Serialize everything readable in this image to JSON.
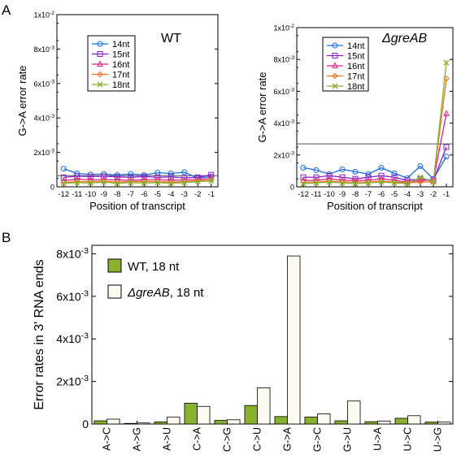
{
  "panel_labels": {
    "a": "A",
    "b": "B"
  },
  "chart_data": [
    {
      "type": "line",
      "panel": "A",
      "title": "WT",
      "xlabel": "Position of transcript",
      "ylabel": "G->A error rate",
      "categories": [
        "-12",
        "-11",
        "-10",
        "-9",
        "-8",
        "-7",
        "-6",
        "-5",
        "-4",
        "-3",
        "-2",
        "-1"
      ],
      "ylim": [
        0,
        0.01
      ],
      "ytick_labels": [
        "0",
        "2x10-3",
        "4x10-3",
        "6x10-3",
        "8x10-3",
        "1x10-2"
      ],
      "reference_line": 0.00065,
      "legend_position": "top-left",
      "series": [
        {
          "name": "14nt",
          "color": "#1a6ee0",
          "marker": "circle",
          "values": [
            0.00105,
            0.00078,
            0.00072,
            0.00075,
            0.00068,
            0.00075,
            0.00068,
            0.00082,
            0.00078,
            0.00085,
            0.0005,
            0.0006
          ]
        },
        {
          "name": "15nt",
          "color": "#8a1ec8",
          "marker": "square",
          "values": [
            0.00055,
            0.00062,
            0.0006,
            0.00062,
            0.00058,
            0.00055,
            0.0006,
            0.00055,
            0.00058,
            0.00052,
            0.00055,
            0.0007
          ]
        },
        {
          "name": "16nt",
          "color": "#e0208a",
          "marker": "triangle",
          "values": [
            0.00035,
            0.00045,
            0.0004,
            0.00042,
            0.0004,
            0.00038,
            0.0004,
            0.00042,
            0.00038,
            0.0004,
            0.00042,
            0.0005
          ]
        },
        {
          "name": "17nt",
          "color": "#f07020",
          "marker": "diamond",
          "values": [
            0.00025,
            0.0003,
            0.0003,
            0.00032,
            0.00028,
            0.0003,
            0.00032,
            0.0003,
            0.00028,
            0.0003,
            0.00035,
            0.0004
          ]
        },
        {
          "name": "18nt",
          "color": "#88b030",
          "marker": "x",
          "values": [
            0.0002,
            0.00025,
            0.00022,
            0.00028,
            0.0002,
            0.00025,
            0.00022,
            0.00025,
            0.0002,
            0.00025,
            0.0003,
            0.00035
          ]
        }
      ]
    },
    {
      "type": "line",
      "panel": "A",
      "title": "ΔgreAB",
      "xlabel": "Position of transcript",
      "ylabel": "G->A error rate",
      "categories": [
        "-12",
        "-11",
        "-10",
        "-9",
        "-8",
        "-7",
        "-6",
        "-5",
        "-4",
        "-3",
        "-2",
        "-1"
      ],
      "ylim": [
        0,
        0.01
      ],
      "ytick_labels": [
        "0",
        "2x10-3",
        "4x10-3",
        "6x10-3",
        "8x10-3",
        "1x10-2"
      ],
      "reference_line": 0.0027,
      "legend_position": "top-left",
      "series": [
        {
          "name": "14nt",
          "color": "#1a6ee0",
          "marker": "circle",
          "values": [
            0.0012,
            0.00105,
            0.0008,
            0.0011,
            0.00095,
            0.0008,
            0.0012,
            0.00085,
            0.00055,
            0.0013,
            0.0005,
            0.0019
          ]
        },
        {
          "name": "15nt",
          "color": "#8a1ec8",
          "marker": "square",
          "values": [
            0.0006,
            0.0006,
            0.0007,
            0.0006,
            0.0005,
            0.0006,
            0.0007,
            0.0006,
            0.0004,
            0.0005,
            0.0004,
            0.0025
          ]
        },
        {
          "name": "16nt",
          "color": "#e0208a",
          "marker": "triangle",
          "values": [
            0.0004,
            0.0004,
            0.0005,
            0.0004,
            0.0004,
            0.0004,
            0.0005,
            0.0004,
            0.0003,
            0.0004,
            0.0004,
            0.0046
          ]
        },
        {
          "name": "17nt",
          "color": "#f07020",
          "marker": "diamond",
          "values": [
            0.0003,
            0.0003,
            0.00035,
            0.0003,
            0.0003,
            0.0003,
            0.00035,
            0.0003,
            0.00025,
            0.0003,
            0.0003,
            0.0068
          ]
        },
        {
          "name": "18nt",
          "color": "#88b030",
          "marker": "x",
          "values": [
            0.0002,
            0.00025,
            0.0003,
            0.00025,
            0.0002,
            0.00025,
            0.0003,
            0.00025,
            0.0002,
            0.0006,
            0.0003,
            0.0078
          ]
        }
      ]
    },
    {
      "type": "bar",
      "panel": "B",
      "ylabel": "Error rates in 3' RNA ends",
      "categories": [
        "A->C",
        "A->G",
        "A->U",
        "C->A",
        "C->G",
        "C->U",
        "G->A",
        "G->C",
        "G->U",
        "U->A",
        "U->C",
        "U->G"
      ],
      "ylim": [
        0,
        0.0084
      ],
      "ytick_values": [
        0,
        0.002,
        0.004,
        0.006,
        0.008
      ],
      "ytick_labels": [
        "0",
        "2x10-3",
        "4x10-3",
        "6x10-3",
        "8x10-3"
      ],
      "legend_position": "top-left",
      "series": [
        {
          "name": "WT, 18 nt",
          "color": "#8ab030",
          "values": [
            0.00015,
            3e-05,
            0.0001,
            0.00098,
            0.00017,
            0.00087,
            0.00035,
            0.00033,
            0.00015,
            0.00011,
            0.00027,
            9e-05
          ]
        },
        {
          "name": "ΔgreAB, 18 nt",
          "color": "#fafaf0",
          "values": [
            0.00023,
            5e-05,
            0.00033,
            0.00083,
            0.0002,
            0.0017,
            0.0079,
            0.00048,
            0.00108,
            0.00014,
            0.00039,
            9e-05
          ]
        }
      ]
    }
  ]
}
